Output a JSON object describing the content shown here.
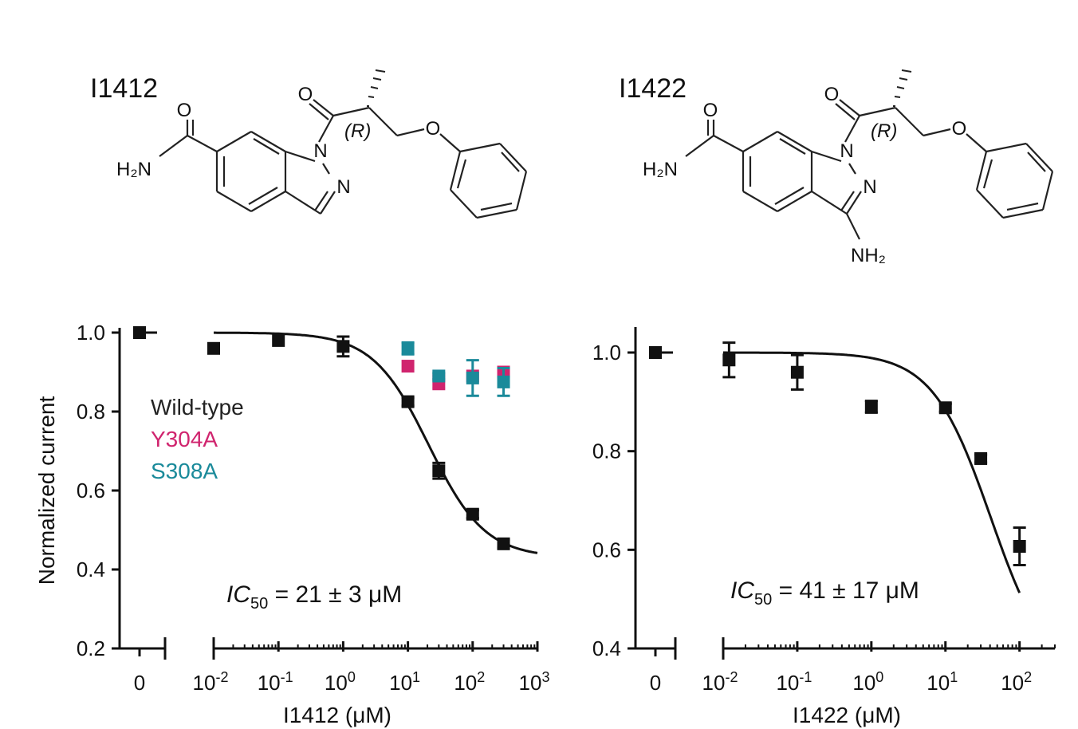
{
  "compounds": [
    {
      "name": "I1412",
      "atoms": {
        "carbonyl_o": "O",
        "acyl_o": "O",
        "ether_o": "O",
        "n1": "N",
        "n2": "N",
        "amide_n": "H₂N",
        "stereo": "(R)"
      }
    },
    {
      "name": "I1422",
      "atoms": {
        "carbonyl_o": "O",
        "acyl_o": "O",
        "ether_o": "O",
        "n1": "N",
        "n2": "N",
        "amide_n": "H₂N",
        "stereo": "(R)",
        "amino": "NH₂"
      }
    }
  ],
  "chart_data": [
    {
      "type": "scatter",
      "panel": "left",
      "xlabel": "I1412 (μM)",
      "ylabel": "Normalized current",
      "xscale": "log",
      "xlim": [
        0.01,
        1000
      ],
      "ylim": [
        0.2,
        1.0
      ],
      "yticks": [
        0.2,
        0.4,
        0.6,
        0.8,
        1.0
      ],
      "ytick_labels": [
        "0.2",
        "0.4",
        "0.6",
        "0.8",
        "1.0"
      ],
      "xticks": [
        0.01,
        0.1,
        1,
        10,
        100,
        1000
      ],
      "xtick_labels": [
        {
          "base": "10",
          "exp": "-2"
        },
        {
          "base": "10",
          "exp": "-1"
        },
        {
          "base": "10",
          "exp": "0"
        },
        {
          "base": "10",
          "exp": "1"
        },
        {
          "base": "10",
          "exp": "2"
        },
        {
          "base": "10",
          "exp": "3"
        }
      ],
      "zero_label": "0",
      "zero_point": {
        "y": 1.0
      },
      "legend": [
        "Wild-type",
        "Y304A",
        "S308A"
      ],
      "legend_placement": "left-middle",
      "annotation": {
        "prefix": "IC",
        "sub": "50",
        "rest": " = 21 ± 3 μM"
      },
      "series": [
        {
          "name": "Wild-type",
          "color": "#111111",
          "points": [
            {
              "x": 0.01,
              "y": 0.96,
              "err": 0
            },
            {
              "x": 0.1,
              "y": 0.98,
              "err": 0
            },
            {
              "x": 1,
              "y": 0.965,
              "err": 0.025
            },
            {
              "x": 10,
              "y": 0.825,
              "err": 0.01
            },
            {
              "x": 30,
              "y": 0.65,
              "err": 0.02
            },
            {
              "x": 100,
              "y": 0.54,
              "err": 0.01
            },
            {
              "x": 300,
              "y": 0.465,
              "err": 0.01
            }
          ]
        },
        {
          "name": "Y304A",
          "color": "#d0246e",
          "points": [
            {
              "x": 10,
              "y": 0.915,
              "err": 0
            },
            {
              "x": 30,
              "y": 0.875,
              "err": 0.018
            },
            {
              "x": 100,
              "y": 0.89,
              "err": 0
            },
            {
              "x": 300,
              "y": 0.9,
              "err": 0
            }
          ]
        },
        {
          "name": "S308A",
          "color": "#1a8a9a",
          "points": [
            {
              "x": 10,
              "y": 0.96,
              "err": 0.015
            },
            {
              "x": 30,
              "y": 0.89,
              "err": 0.008
            },
            {
              "x": 100,
              "y": 0.885,
              "err": 0.045
            },
            {
              "x": 300,
              "y": 0.875,
              "err": 0.035
            }
          ]
        }
      ],
      "fit": {
        "top": 1.0,
        "bottom": 0.43,
        "ic50": 21,
        "hill": 1.0,
        "xrange": [
          0.01,
          1000
        ]
      }
    },
    {
      "type": "scatter",
      "panel": "right",
      "xlabel": "I1422 (μM)",
      "ylabel": "",
      "xscale": "log",
      "xlim": [
        0.01,
        300
      ],
      "ylim": [
        0.4,
        1.0
      ],
      "yticks": [
        0.4,
        0.6,
        0.8,
        1.0
      ],
      "ytick_labels": [
        "0.4",
        "0.6",
        "0.8",
        "1.0"
      ],
      "xticks": [
        0.01,
        0.1,
        1,
        10,
        100
      ],
      "xtick_labels": [
        {
          "base": "10",
          "exp": "-2"
        },
        {
          "base": "10",
          "exp": "-1"
        },
        {
          "base": "10",
          "exp": "0"
        },
        {
          "base": "10",
          "exp": "1"
        },
        {
          "base": "10",
          "exp": "2"
        }
      ],
      "zero_label": "0",
      "zero_point": {
        "y": 1.0
      },
      "annotation": {
        "prefix": "IC",
        "sub": "50",
        "rest": " = 41 ± 17 μM"
      },
      "series": [
        {
          "name": "I1422",
          "color": "#111111",
          "points": [
            {
              "x": 0.012,
              "y": 0.985,
              "err": 0.035
            },
            {
              "x": 0.1,
              "y": 0.96,
              "err": 0.035
            },
            {
              "x": 1,
              "y": 0.89,
              "err": 0.012
            },
            {
              "x": 10,
              "y": 0.888,
              "err": 0.008
            },
            {
              "x": 30,
              "y": 0.785,
              "err": 0.008
            },
            {
              "x": 100,
              "y": 0.607,
              "err": 0.038
            }
          ]
        }
      ],
      "fit": {
        "top": 1.0,
        "bottom": 0.33,
        "ic50": 41,
        "hill": 1.1,
        "xrange": [
          0.01,
          100
        ]
      }
    }
  ]
}
